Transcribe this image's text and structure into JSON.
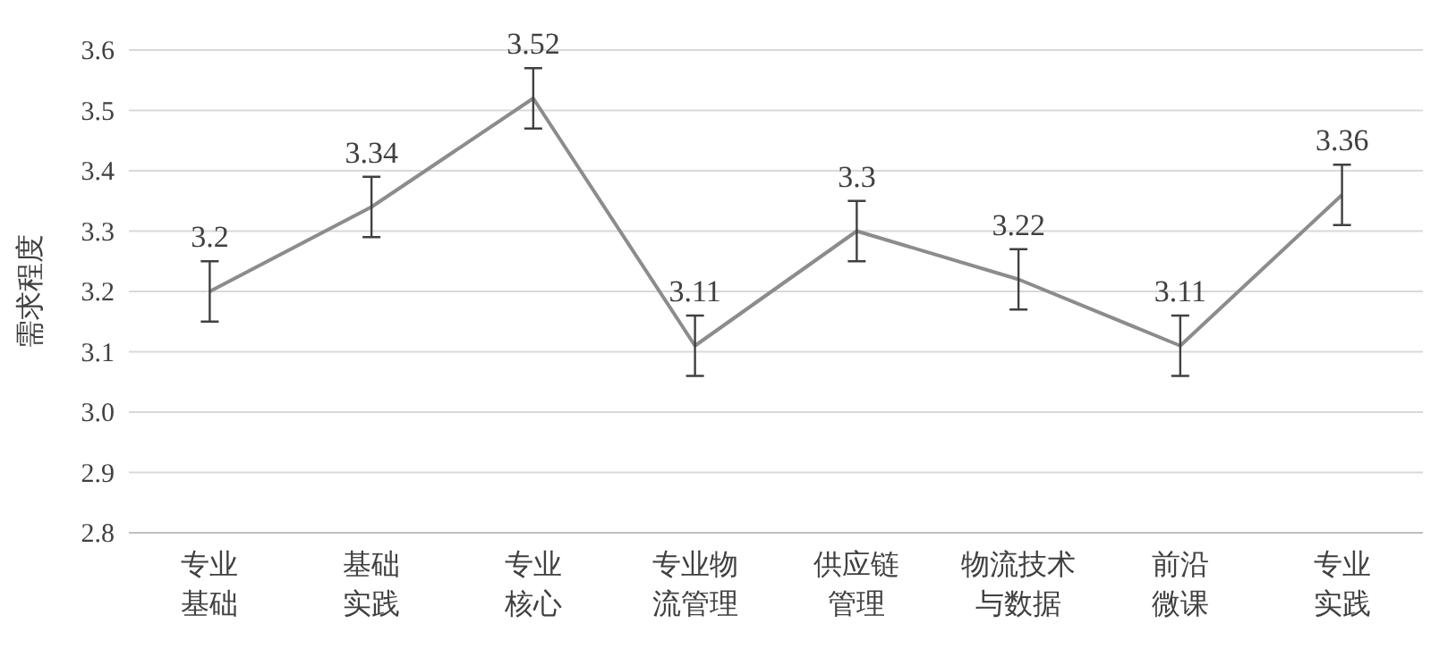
{
  "chart_data": {
    "type": "line",
    "ylabel": "需求程度",
    "categories": [
      "专业基础",
      "基础实践",
      "专业核心",
      "专业物流管理",
      "供应链管理",
      "物流技术与数据",
      "前沿微课",
      "专业实践"
    ],
    "series": [
      {
        "color": "#8c8c8c",
        "values": [
          3.2,
          3.34,
          3.52,
          3.11,
          3.3,
          3.22,
          3.11,
          3.36
        ],
        "errors": [
          0.05,
          0.05,
          0.05,
          0.05,
          0.05,
          0.05,
          0.05,
          0.05
        ]
      }
    ],
    "ylim": [
      2.8,
      3.6
    ],
    "yticks": [
      2.8,
      2.9,
      {
        "value": 3.0,
        "label": "3.0"
      },
      3.1,
      3.2,
      3.3,
      3.4,
      3.5,
      3.6
    ],
    "grid": "y",
    "data_labels": true,
    "marker": "none",
    "line_style": "solid"
  }
}
